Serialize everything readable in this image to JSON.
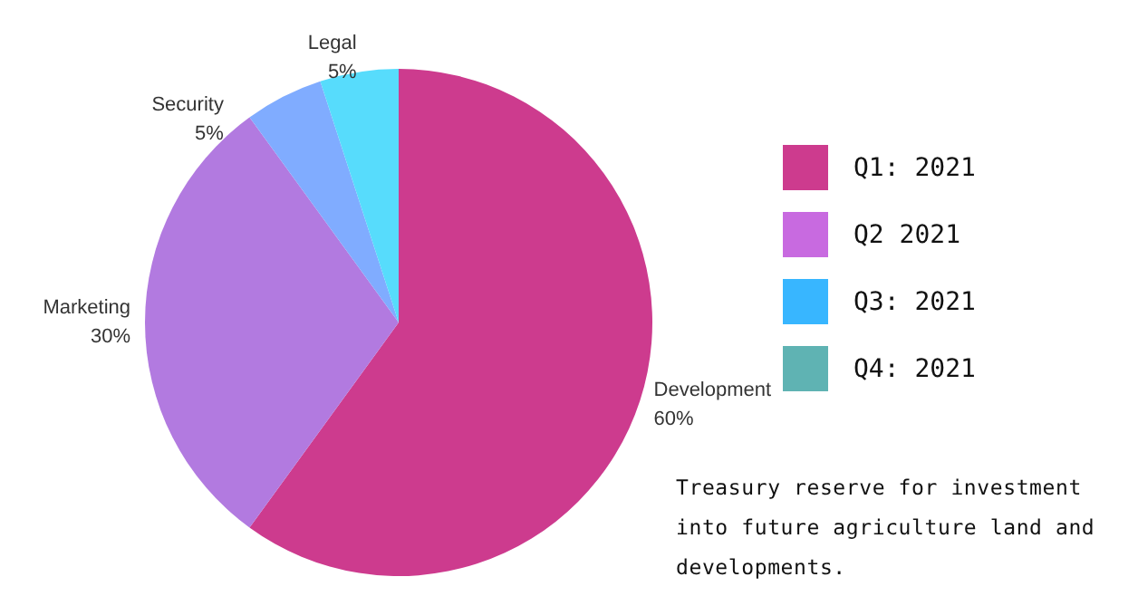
{
  "chart_data": {
    "type": "pie",
    "categories": [
      "Development",
      "Marketing",
      "Security",
      "Legal"
    ],
    "values": [
      60,
      30,
      5,
      5
    ],
    "value_labels": [
      "60%",
      "30%",
      "5%",
      "5%"
    ],
    "colors": [
      "#cd3b8e",
      "#b27ae0",
      "#80acff",
      "#57dcfc"
    ],
    "annotations": [
      "Q1: 2021",
      "Q2 2021",
      "Q3: 2021",
      "Q4: 2021",
      "Treasury reserve for investment into future agriculture land and developments."
    ]
  }
}
